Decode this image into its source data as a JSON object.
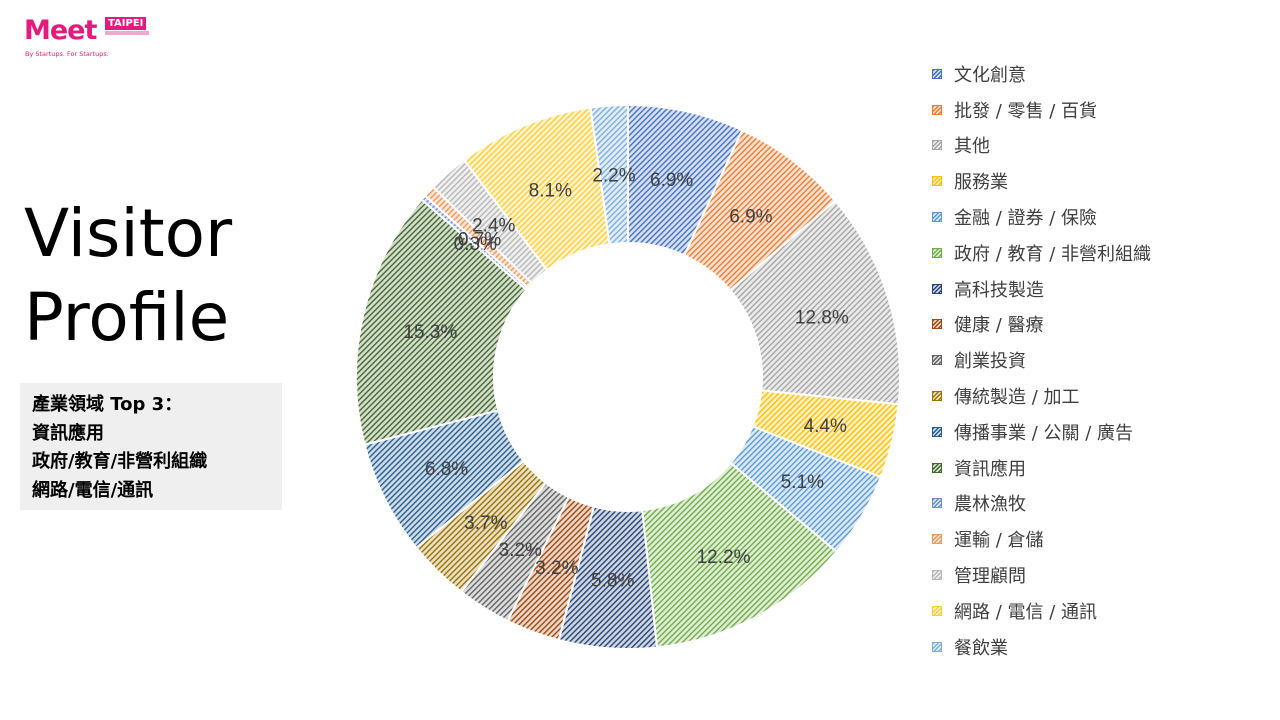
{
  "logo": {
    "wordmark": "Meet",
    "badge": "TAIPEI",
    "tagline": "By Startups. For Startups."
  },
  "title": {
    "line1": "Visitor",
    "line2": "Profile"
  },
  "top3": {
    "heading": "產業領域 Top 3：",
    "items": [
      "資訊應用",
      "政府/教育/非營利組織",
      "網路/電信/通訊"
    ]
  },
  "chart_data": {
    "type": "pie",
    "style": "doughnut",
    "title": "",
    "legend_position": "right",
    "labels": [
      "文化創意",
      "批發 / 零售 / 百貨",
      "其他",
      "服務業",
      "金融 / 證券 / 保險",
      "政府 / 教育 / 非營利組織",
      "高科技製造",
      "健康 / 醫療",
      "創業投資",
      "傳統製造 / 加工",
      "傳播事業 / 公關 / 廣告",
      "資訊應用",
      "農林漁牧",
      "運輸 / 倉儲",
      "管理顧問",
      "網路 / 電信 / 通訊",
      "餐飲業"
    ],
    "values": [
      6.9,
      6.9,
      12.8,
      4.4,
      5.1,
      12.2,
      5.8,
      3.2,
      3.2,
      3.7,
      6.8,
      15.3,
      0.3,
      0.7,
      2.4,
      8.1,
      2.2
    ],
    "value_labels": [
      "6.9%",
      "6.9%",
      "12.8%",
      "4.4%",
      "5.1%",
      "12.2%",
      "5.8%",
      "3.2%",
      "3.2%",
      "3.7%",
      "6.8%",
      "15.3%",
      "0.3%",
      "0.7%",
      "2.4%",
      "8.1%",
      "2.2%"
    ],
    "colors": [
      "#4472c4",
      "#ed7d31",
      "#a5a5a5",
      "#ffc000",
      "#5b9bd5",
      "#70ad47",
      "#264478",
      "#9e480e",
      "#636363",
      "#997300",
      "#255e91",
      "#43682b",
      "#698ed0",
      "#f1975a",
      "#b7b7b7",
      "#ffcd33",
      "#7cafdd"
    ],
    "fill_pattern": "diagonal-hatch"
  }
}
